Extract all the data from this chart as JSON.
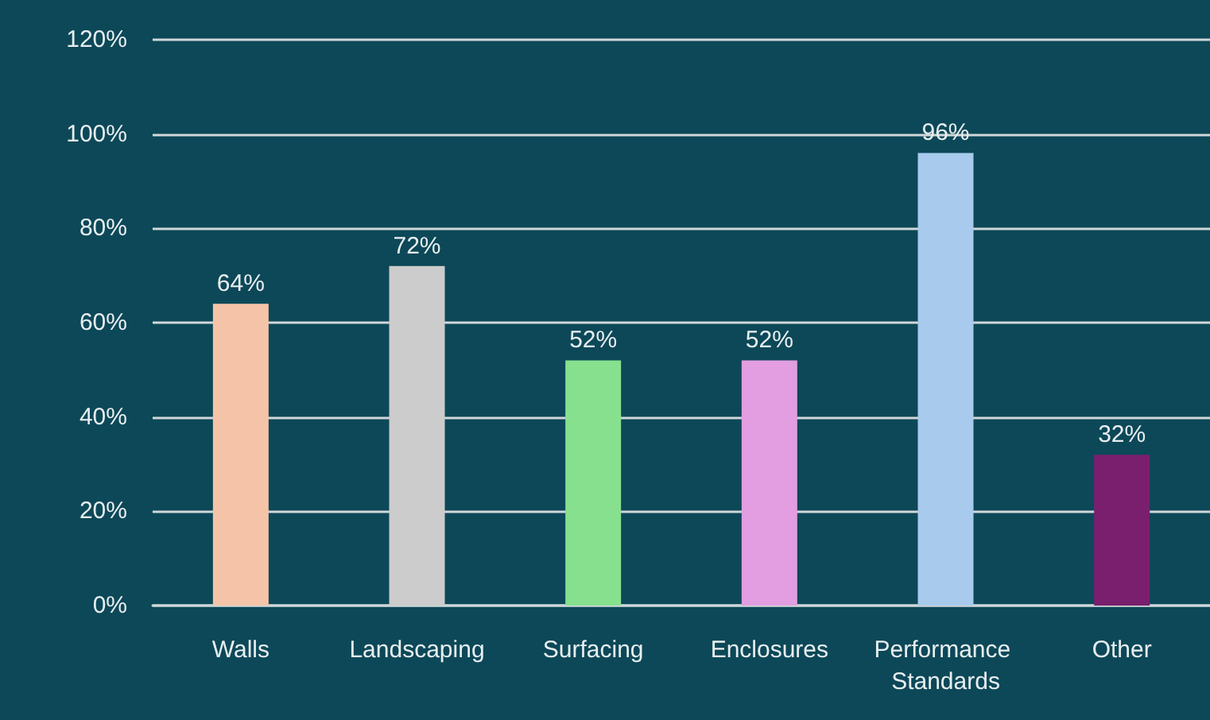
{
  "chart_data": {
    "type": "bar",
    "categories": [
      "Walls",
      "Landscaping",
      "Surfacing",
      "Enclosures",
      "Performance Standards",
      "Other"
    ],
    "values": [
      64,
      72,
      52,
      52,
      96,
      32
    ],
    "colors": [
      "#f5c4a8",
      "#cccccc",
      "#86e08e",
      "#e29ee0",
      "#a8caec",
      "#7a1f6e"
    ],
    "value_labels": [
      "64%",
      "72%",
      "52%",
      "52%",
      "96%",
      "32%"
    ],
    "ylim": [
      0,
      120
    ],
    "yticks": [
      {
        "value": 0,
        "label": "0%"
      },
      {
        "value": 20,
        "label": "20%"
      },
      {
        "value": 40,
        "label": "40%"
      },
      {
        "value": 60,
        "label": "60%"
      },
      {
        "value": 80,
        "label": "80%"
      },
      {
        "value": 100,
        "label": "100%"
      },
      {
        "value": 120,
        "label": "120%"
      }
    ],
    "grid": "y"
  }
}
